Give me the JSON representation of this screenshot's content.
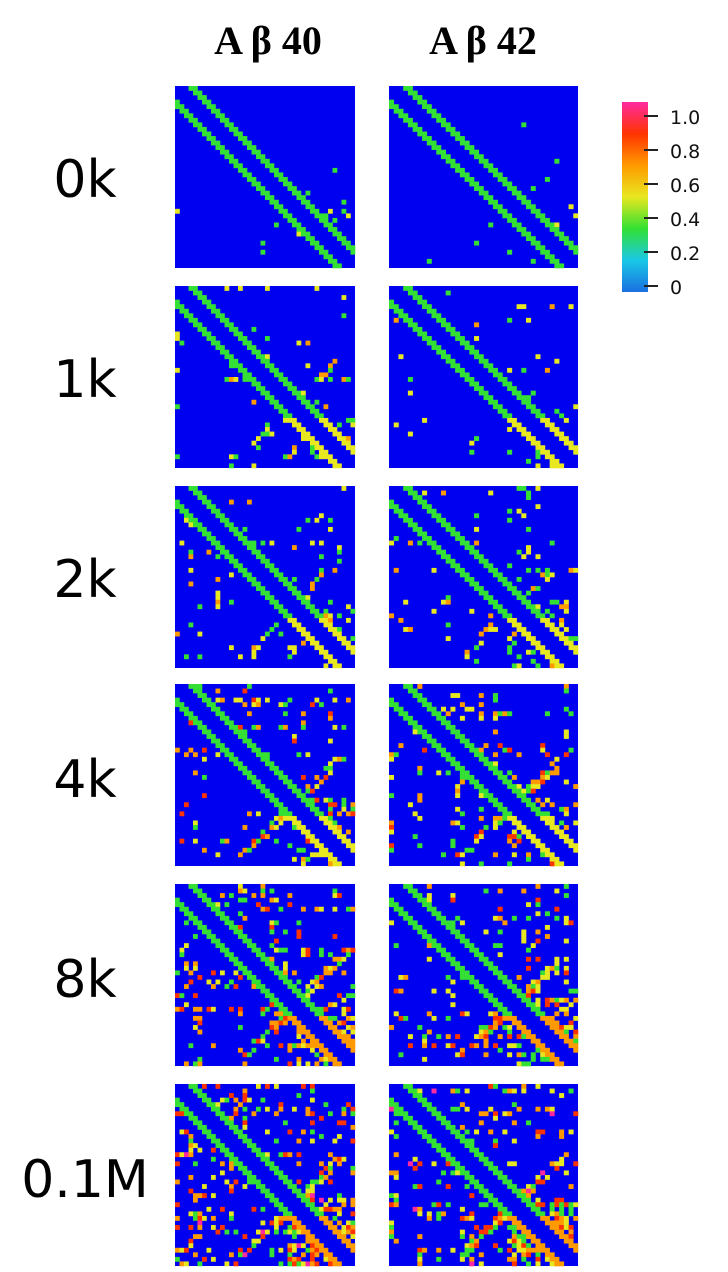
{
  "chart_data": {
    "type": "heatmap",
    "panel_grid": {
      "columns": [
        "A β 40",
        "A β 42"
      ],
      "rows": [
        "0k",
        "1k",
        "2k",
        "4k",
        "8k",
        "0.1M"
      ]
    },
    "colorbar": {
      "ticks": [
        "1.0",
        "0.8",
        "0.6",
        "0.4",
        "0.2",
        "0"
      ],
      "range": [
        0,
        1.0
      ],
      "colors": [
        "#1a6fe0",
        "#19c8e6",
        "#33e033",
        "#e8e820",
        "#ff9a00",
        "#ff3300",
        "#ff2aa0"
      ]
    },
    "background_color": "#0000f0"
  }
}
